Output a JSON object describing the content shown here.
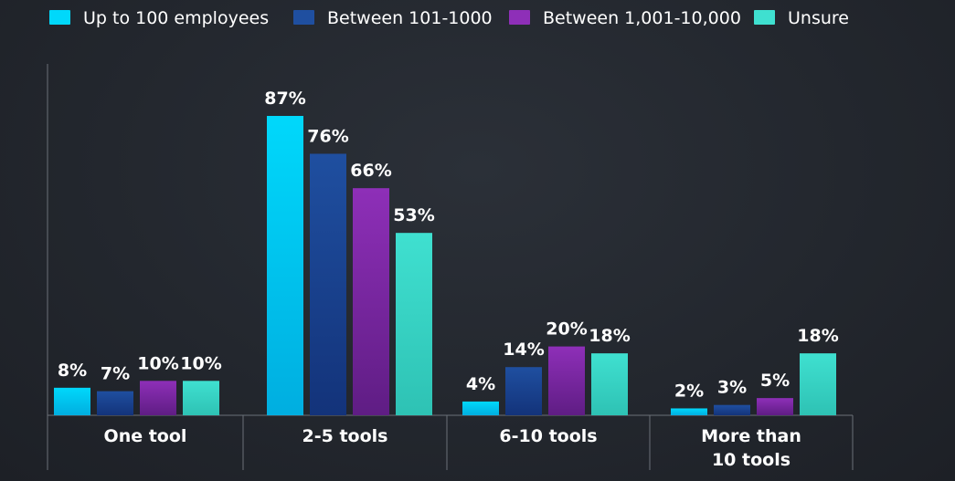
{
  "chart_data": {
    "type": "bar",
    "categories": [
      [
        "One tool"
      ],
      [
        "2-5 tools"
      ],
      [
        "6-10 tools"
      ],
      [
        "More than",
        "10 tools"
      ]
    ],
    "series": [
      {
        "name": "Up to 100 employees",
        "values": [
          8,
          87,
          4,
          2
        ],
        "labels": [
          "8%",
          "87%",
          "4%",
          "2%"
        ],
        "color": "#00d8fb",
        "color_dark": "#00aee0"
      },
      {
        "name": "Between 101-1000",
        "values": [
          7,
          76,
          14,
          3
        ],
        "labels": [
          "7%",
          "76%",
          "14%",
          "3%"
        ],
        "color": "#1f4fa0",
        "color_dark": "#13337a"
      },
      {
        "name": "Between 1,001-10,000",
        "values": [
          10,
          66,
          20,
          5
        ],
        "labels": [
          "10%",
          "66%",
          "20%",
          "5%"
        ],
        "color": "#8e2fb8",
        "color_dark": "#5f1d84"
      },
      {
        "name": "Unsure",
        "values": [
          10,
          53,
          18,
          18
        ],
        "labels": [
          "10%",
          "53%",
          "18%",
          "18%"
        ],
        "color": "#3fe0d0",
        "color_dark": "#2ec2b4"
      }
    ],
    "ylim": [
      0,
      100
    ],
    "legend_position": "top-left",
    "grid": false
  }
}
